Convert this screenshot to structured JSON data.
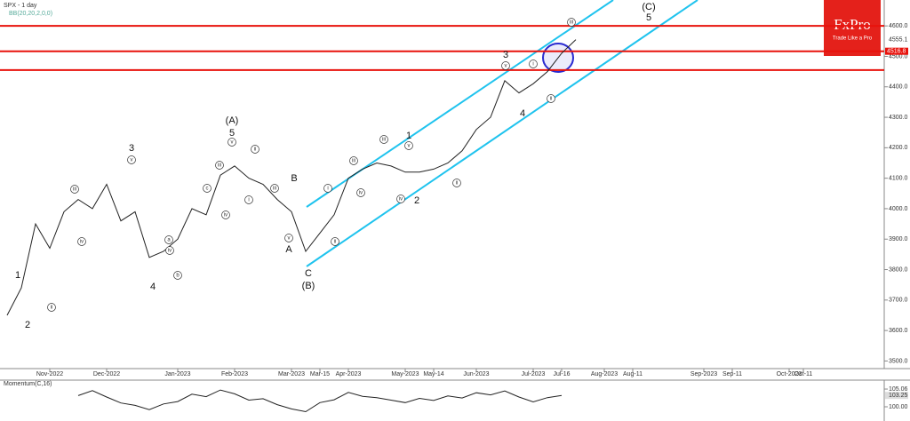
{
  "chart_data": [
    {
      "type": "line",
      "title": "SPX - 1 day",
      "subtitle": "BB(20,20,2,0,0)",
      "categories": [
        null,
        null,
        null,
        "Nov-2022",
        null,
        null,
        null,
        "Dec-2022",
        null,
        null,
        null,
        null,
        "Jan-2023",
        null,
        null,
        null,
        "Feb-2023",
        null,
        null,
        null,
        "Mar-2023",
        null,
        "Mar-15",
        null,
        "Apr-2023",
        null,
        null,
        null,
        "May-2023",
        null,
        "May-14",
        null,
        null,
        "Jun-2023",
        null,
        null,
        null,
        "Jul-2023",
        null,
        "Jul-16",
        null,
        null,
        "Aug-2023",
        null,
        "Aug-11",
        null,
        null,
        null,
        null,
        "Sep-2023",
        null,
        "Sep-11",
        null,
        null,
        null,
        "Oct-2023",
        "Oct-11",
        null,
        null,
        null,
        null,
        null
      ],
      "series": [
        {
          "name": "SPX",
          "color": "#222222",
          "values": [
            3650,
            3740,
            3950,
            3870,
            3990,
            4030,
            4000,
            4080,
            3960,
            3990,
            3840,
            3860,
            3900,
            4000,
            3980,
            4110,
            4140,
            4100,
            4080,
            4030,
            3990,
            3860,
            3920,
            3980,
            4100,
            4130,
            4150,
            4140,
            4120,
            4120,
            4130,
            4150,
            4190,
            4260,
            4300,
            4420,
            4380,
            4410,
            4450,
            4510,
            4555.1,
            null,
            null,
            null,
            null,
            null,
            null,
            null,
            null,
            null,
            null,
            null,
            null,
            null,
            null,
            null,
            null,
            null,
            null,
            null,
            null,
            null
          ]
        }
      ],
      "last_value": 4555.1,
      "levels": [
        4600,
        4516.8,
        4455
      ],
      "level_color": "#e8120c",
      "level_label": 4516.8,
      "ylim": [
        3475,
        4685
      ],
      "yticks": [
        {
          "value": 3500,
          "label": "3500.0"
        },
        {
          "value": 3600,
          "label": "3600.0"
        },
        {
          "value": 3700,
          "label": "3700.0"
        },
        {
          "value": 3800,
          "label": "3800.0"
        },
        {
          "value": 3900,
          "label": "3900.0"
        },
        {
          "value": 4000,
          "label": "4000.0"
        },
        {
          "value": 4100,
          "label": "4100.0"
        },
        {
          "value": 4200,
          "label": "4200.0"
        },
        {
          "value": 4300,
          "label": "4300.0"
        },
        {
          "value": 4400,
          "label": "4400.0"
        },
        {
          "value": 4500,
          "label": "4500.0"
        },
        {
          "value": 4600,
          "label": "4600.0"
        }
      ],
      "annotations": [
        "(C)",
        "5",
        "3",
        "4",
        "(A)",
        "5",
        "3",
        "B",
        "A",
        "C",
        "(B)",
        "1",
        "2",
        "4",
        "1",
        "2",
        "iii",
        "v",
        "i",
        "ii",
        "v",
        "v",
        "ii",
        "iii",
        "i",
        "iv",
        "iii",
        "iv",
        "ii",
        "iii",
        "v",
        "iv",
        "ii",
        "iii",
        "iv",
        "i",
        "ii",
        "v",
        "iii",
        "iv",
        "a",
        "b",
        "c"
      ]
    },
    {
      "type": "line",
      "title": "Momentum(C,16)",
      "series": [
        {
          "name": "Momentum",
          "color": "#222222",
          "values": [
            null,
            null,
            null,
            null,
            null,
            103.2,
            104.6,
            102.8,
            101.1,
            100.4,
            99.2,
            100.8,
            101.5,
            103.6,
            102.9,
            104.8,
            103.7,
            101.9,
            102.3,
            100.6,
            99.4,
            98.6,
            101.2,
            102.0,
            104.1,
            103.0,
            102.6,
            101.9,
            101.2,
            102.4,
            101.8,
            103.1,
            102.5,
            104.0,
            103.4,
            104.5,
            102.8,
            101.4,
            102.6,
            103.25
          ]
        }
      ],
      "last_value": 103.25,
      "ylim": [
        95.95,
        107.6
      ],
      "yticks": [
        {
          "value": 100,
          "label": "100.00"
        },
        {
          "value": 105.06,
          "label": "105.06"
        }
      ]
    }
  ],
  "logo": {
    "name": "FxPro",
    "tagline": "Trade Like a Pro"
  }
}
